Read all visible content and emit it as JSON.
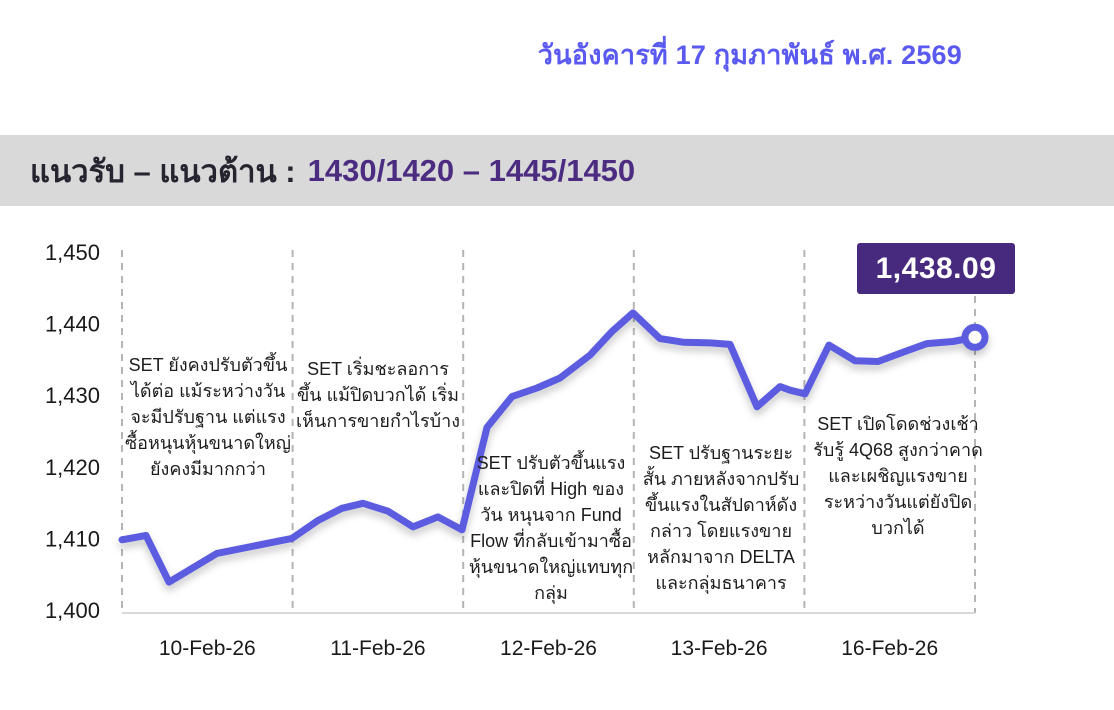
{
  "header": {
    "date_label": "วันอังคารที่ 17 กุมภาพันธ์ พ.ศ. 2569"
  },
  "banner": {
    "title": "แนวรับ – แนวต้าน :",
    "levels": "1430/1420 – 1445/1450"
  },
  "colors": {
    "date_text": "#5a5af0",
    "banner_bg": "#d9d9d9",
    "banner_title": "#25242f",
    "banner_levels": "#4b2c80",
    "line": "#5b5be1",
    "marker_fill": "#ffffff",
    "callout_bg": "#472a7e",
    "callout_text": "#ffffff",
    "grid_dash": "#b4b4b4",
    "axis_line": "#d9d9d9",
    "tick_text": "#191919"
  },
  "chart_data": {
    "type": "line",
    "title": "",
    "xlabel": "",
    "ylabel": "",
    "ylim": [
      1400,
      1450
    ],
    "grid": "vertical dashed dividers per trading day, no horizontal gridlines",
    "legend": "none",
    "yticks": [
      {
        "v": 1450,
        "label": "1,450"
      },
      {
        "v": 1440,
        "label": "1,440"
      },
      {
        "v": 1430,
        "label": "1,430"
      },
      {
        "v": 1420,
        "label": "1,420"
      },
      {
        "v": 1410,
        "label": "1,410"
      },
      {
        "v": 1400,
        "label": "1,400"
      }
    ],
    "categories": [
      "10-Feb-26",
      "11-Feb-26",
      "12-Feb-26",
      "13-Feb-26",
      "16-Feb-26"
    ],
    "series": [
      {
        "name": "SET Index",
        "points": [
          [
            0,
            1409.8
          ],
          [
            24,
            1410.4
          ],
          [
            47,
            1403.9
          ],
          [
            95,
            1407.9
          ],
          [
            170,
            1410.0
          ],
          [
            196,
            1412.5
          ],
          [
            220,
            1414.2
          ],
          [
            241,
            1414.9
          ],
          [
            266,
            1413.8
          ],
          [
            291,
            1411.6
          ],
          [
            316,
            1413.0
          ],
          [
            340,
            1411.2
          ],
          [
            365,
            1425.5
          ],
          [
            390,
            1429.8
          ],
          [
            415,
            1431.0
          ],
          [
            438,
            1432.4
          ],
          [
            468,
            1435.6
          ],
          [
            490,
            1438.9
          ],
          [
            511,
            1441.5
          ],
          [
            538,
            1437.9
          ],
          [
            561,
            1437.4
          ],
          [
            588,
            1437.3
          ],
          [
            608,
            1437.1
          ],
          [
            635,
            1428.4
          ],
          [
            658,
            1431.2
          ],
          [
            668,
            1430.7
          ],
          [
            683,
            1430.2
          ],
          [
            707,
            1437.0
          ],
          [
            733,
            1434.8
          ],
          [
            756,
            1434.7
          ],
          [
            783,
            1436.1
          ],
          [
            805,
            1437.2
          ],
          [
            831,
            1437.5
          ],
          [
            853,
            1438.09
          ]
        ]
      }
    ],
    "last_close": 1438.09,
    "last_price_label": "1,438.09",
    "annotations": [
      "SET ยังคงปรับตัวขึ้นได้ต่อ แม้ระหว่างวันจะมีปรับฐาน แต่แรงซื้อหนุนหุ้นขนาดใหญ่ยังคงมีมากกว่า",
      "SET เริ่มชะลอการขึ้น แม้ปิดบวกได้ เริ่มเห็นการขายกำไรบ้าง",
      "SET ปรับตัวขึ้นแรง และปิดที่ High ของวัน หนุนจาก Fund Flow ที่กลับเข้ามาซื้อหุ้นขนาดใหญ่แทบทุกกลุ่ม",
      "SET ปรับฐานระยะสั้น ภายหลังจากปรับขึ้นแรงในสัปดาห์ดังกล่าว โดยแรงขายหลักมาจาก DELTA และกลุ่มธนาคาร",
      "SET เปิดโดดช่วงเช้า รับรู้ 4Q68 สูงกว่าคาด และเผชิญแรงขายระหว่างวันแต่ยังปิดบวกได้"
    ]
  }
}
